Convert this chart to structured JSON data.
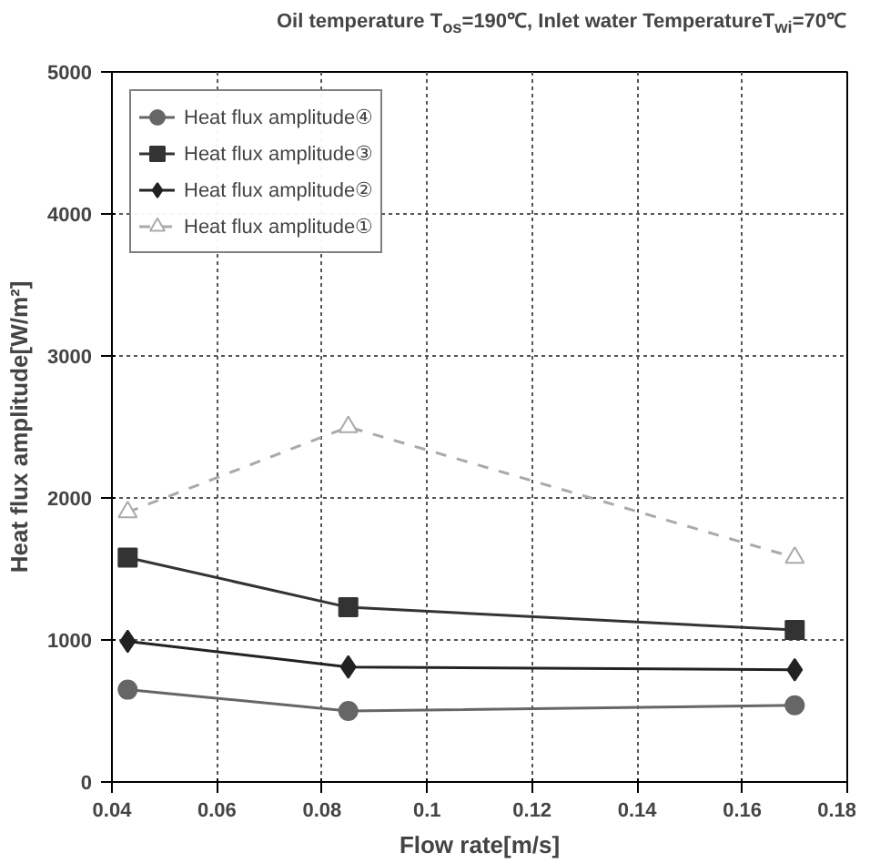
{
  "chart_data": {
    "type": "line",
    "title": "Oil temperature T$_{os}$=190℃, Inlet water TemperatureT$_{wi}$=70℃",
    "xlabel": "Flow rate[m/s]",
    "ylabel": "Heat flux amplitude[W/m²]",
    "x": [
      0.043,
      0.085,
      0.17
    ],
    "series": [
      {
        "name": "Heat flux amplitude④",
        "color": "#666666",
        "marker": "circle",
        "values": [
          650,
          500,
          540
        ]
      },
      {
        "name": "Heat flux amplitude③",
        "color": "#333333",
        "marker": "square",
        "values": [
          1580,
          1230,
          1070
        ]
      },
      {
        "name": "Heat flux amplitude②",
        "color": "#222222",
        "marker": "diamond",
        "values": [
          990,
          810,
          790
        ]
      },
      {
        "name": "Heat flux amplitude①",
        "color": "#aaaaaa",
        "marker": "triangle",
        "line_style": "dashed",
        "values": [
          1900,
          2500,
          1580
        ]
      }
    ],
    "xlim": [
      0.04,
      0.18
    ],
    "xticks": [
      0.04,
      0.06,
      0.08,
      0.1,
      0.12,
      0.14,
      0.16,
      0.18
    ],
    "ylim": [
      0,
      5000
    ],
    "yticks": [
      0,
      1000,
      2000,
      3000,
      4000,
      5000
    ],
    "grid": true,
    "legend": "top left"
  }
}
